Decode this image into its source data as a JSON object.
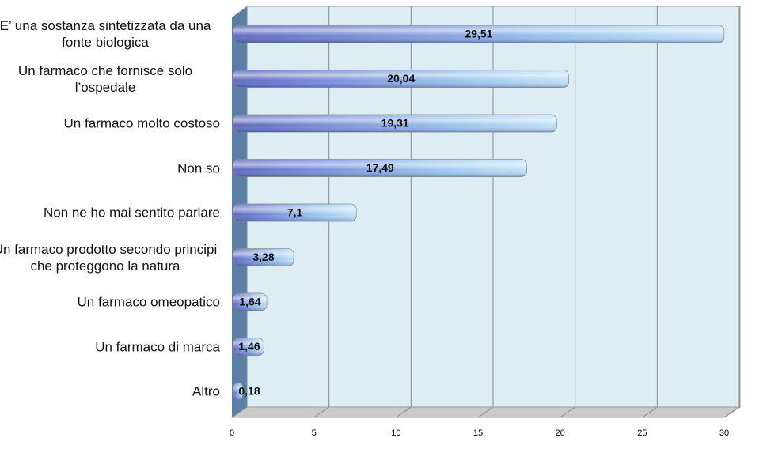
{
  "chart_data": {
    "type": "bar",
    "orientation": "horizontal",
    "categories": [
      "E’ una sostanza sintetizzata da una fonte biologica",
      "Un farmaco che fornisce solo l’ospedale",
      "Un farmaco molto costoso",
      "Non so",
      "Non ne ho mai sentito parlare",
      "Un farmaco prodotto secondo principi che proteggono la natura",
      "Un farmaco omeopatico",
      "Un farmaco di marca",
      "Altro"
    ],
    "values": [
      29.51,
      20.04,
      19.31,
      17.49,
      7.1,
      3.28,
      1.64,
      1.46,
      0.18
    ],
    "value_labels": [
      "29,51",
      "20,04",
      "19,31",
      "17,49",
      "7,1",
      "3,28",
      "1,64",
      "1,46",
      "0,18"
    ],
    "color": "#7f9fe0",
    "xlim": [
      0,
      30
    ],
    "xticks": [
      0,
      5,
      10,
      15,
      20,
      25,
      30
    ],
    "grid": true
  }
}
